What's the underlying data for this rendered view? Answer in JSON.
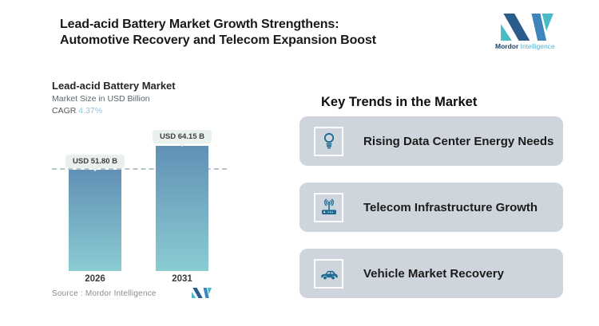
{
  "header": {
    "title_line1": "Lead-acid Battery Market Growth Strengthens:",
    "title_line2": "Automotive Recovery and Telecom Expansion Boost"
  },
  "logo": {
    "word1": "Mordor",
    "word2": "Intelligence"
  },
  "chart": {
    "title": "Lead-acid Battery Market",
    "subtitle": "Market Size in USD Billion",
    "cagr_label": "CAGR",
    "cagr_value": "4.37%",
    "source": "Source : Mordor Intelligence"
  },
  "chart_data": {
    "type": "bar",
    "categories": [
      "2026",
      "2031"
    ],
    "values": [
      51.8,
      64.15
    ],
    "bar_labels": [
      "USD 51.80 B",
      "USD 64.15 B"
    ],
    "title": "Lead-acid Battery Market",
    "ylabel": "Market Size in USD Billion",
    "xlabel": "",
    "ylim": [
      0,
      64.15
    ],
    "cagr": "4.37%",
    "grid": false,
    "legend": "none",
    "annotations": [
      "dashed horizontal reference line at 51.80 (2026 level)"
    ],
    "source": "Source : Mordor Intelligence"
  },
  "trends": {
    "heading": "Key Trends in the Market",
    "items": [
      {
        "icon": "lightbulb-icon",
        "label": "Rising Data Center Energy Needs"
      },
      {
        "icon": "telecom-router-icon",
        "label": "Telecom Infrastructure Growth"
      },
      {
        "icon": "car-icon",
        "label": "Vehicle Market Recovery"
      }
    ]
  },
  "colors": {
    "bar_top": "#6190b5",
    "bar_bottom": "#8bccd3",
    "card_bg": "#cfd5dc",
    "icon_color": "#1d6b93",
    "cagr_color": "#8fc3dc",
    "pill_bg": "#eaf1ed",
    "dash": "#b5c3cb",
    "logo_dark_blue": "#2b5d8c",
    "logo_blue": "#3f85bb",
    "logo_teal": "#49bac6"
  }
}
